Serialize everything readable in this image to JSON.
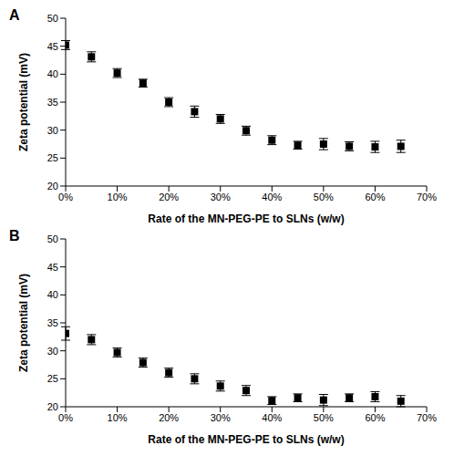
{
  "chart_data": [
    {
      "type": "scatter",
      "title": "A",
      "x_label": "Rate of the MN-PEG-PE to SLNs (w/w)",
      "y_label": "Zeta potential (mV)",
      "x": [
        0,
        5,
        10,
        15,
        20,
        25,
        30,
        35,
        40,
        45,
        50,
        55,
        60,
        65
      ],
      "values": [
        45.2,
        43.1,
        40.2,
        38.4,
        35.0,
        33.3,
        32.0,
        29.9,
        28.2,
        27.3,
        27.5,
        27.1,
        27.0,
        27.1
      ],
      "errors": [
        0.8,
        0.9,
        0.8,
        0.7,
        0.8,
        1.0,
        0.8,
        0.8,
        0.8,
        0.7,
        1.0,
        0.8,
        1.0,
        1.1
      ],
      "color": "#000000",
      "marker": "square",
      "xlim": [
        0,
        70
      ],
      "xticks": [
        {
          "value": 0,
          "label": "0%"
        },
        {
          "value": 10,
          "label": "10%"
        },
        {
          "value": 20,
          "label": "20%"
        },
        {
          "value": 30,
          "label": "30%"
        },
        {
          "value": 40,
          "label": "40%"
        },
        {
          "value": 50,
          "label": "50%"
        },
        {
          "value": 60,
          "label": "60%"
        },
        {
          "value": 70,
          "label": "70%"
        }
      ],
      "ylim": [
        20,
        50
      ],
      "yticks": [
        20,
        25,
        30,
        35,
        40,
        45,
        50
      ],
      "grid": false
    },
    {
      "type": "scatter",
      "title": "B",
      "x_label": "Rate of the MN-PEG-PE to SLNs (w/w)",
      "y_label": "Zeta potential (mV)",
      "x": [
        0,
        5,
        10,
        15,
        20,
        25,
        30,
        35,
        40,
        45,
        50,
        55,
        60,
        65
      ],
      "values": [
        33.1,
        32.0,
        29.7,
        27.9,
        26.1,
        25.0,
        23.7,
        22.9,
        21.1,
        21.6,
        21.2,
        21.6,
        21.8,
        21.0
      ],
      "errors": [
        1.2,
        0.9,
        0.8,
        0.8,
        0.8,
        0.9,
        0.9,
        0.9,
        0.7,
        0.7,
        1.0,
        0.7,
        0.9,
        1.0
      ],
      "color": "#000000",
      "marker": "square",
      "xlim": [
        0,
        70
      ],
      "xticks": [
        {
          "value": 0,
          "label": "0%"
        },
        {
          "value": 10,
          "label": "10%"
        },
        {
          "value": 20,
          "label": "20%"
        },
        {
          "value": 30,
          "label": "30%"
        },
        {
          "value": 40,
          "label": "40%"
        },
        {
          "value": 50,
          "label": "50%"
        },
        {
          "value": 60,
          "label": "60%"
        },
        {
          "value": 70,
          "label": "70%"
        }
      ],
      "ylim": [
        20,
        50
      ],
      "yticks": [
        20,
        25,
        30,
        35,
        40,
        45,
        50
      ],
      "grid": false
    }
  ]
}
